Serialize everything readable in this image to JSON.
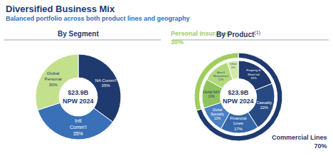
{
  "title": "Diversified Business Mix",
  "subtitle": "Balanced portfolio across both product lines and geography",
  "chart_data": [
    {
      "type": "pie",
      "title": "By Segment",
      "center_text": [
        "$23.9B",
        "NPW 2024"
      ],
      "categories": [
        "NA Comm'l",
        "Intl Comm'l",
        "Global Personal"
      ],
      "values": [
        35,
        35,
        30
      ],
      "value_labels": [
        "35%",
        "35%",
        "30%"
      ],
      "colors": [
        "#1f3a6e",
        "#3a70b8",
        "#c3e08c"
      ],
      "data_labels": true
    },
    {
      "type": "pie",
      "title": "By Product",
      "title_note": "(1)",
      "center_text": [
        "$23.9B",
        "NPW 2024"
      ],
      "categories": [
        "Property & Short tail",
        "Casualty",
        "Financial Lines",
        "Global Specialty",
        "Global A&H",
        "Auto & Homeowners",
        "Other"
      ],
      "values": [
        19,
        22,
        17,
        12,
        13,
        12,
        5
      ],
      "value_labels": [
        "19%",
        "22%",
        "17%",
        "12%",
        "13%",
        "12%",
        "5%"
      ],
      "colors": [
        "#1f3a6e",
        "#284a82",
        "#3567a8",
        "#4a80c4",
        "#8fc45a",
        "#b2d87c",
        "#d3eaa8"
      ],
      "data_labels": true,
      "groups": {
        "categories": [
          "Commercial Lines",
          "Personal Insurance"
        ],
        "values": [
          70,
          30
        ],
        "value_labels": [
          "70%",
          "30%"
        ],
        "colors": [
          "#1f3a6e",
          "#9fcd5e"
        ]
      }
    }
  ]
}
